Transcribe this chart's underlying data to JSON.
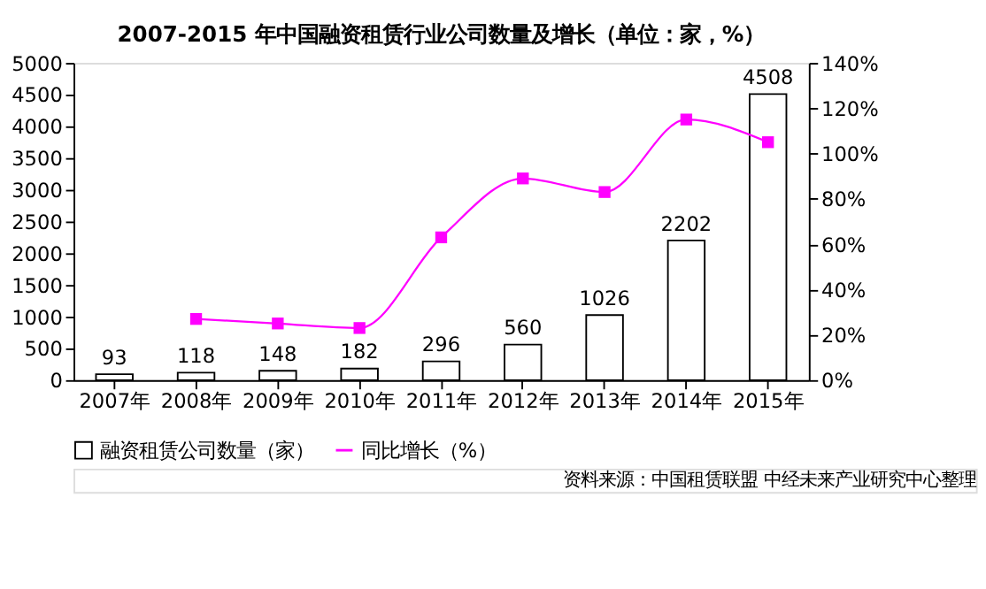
{
  "chart_data": {
    "type": "bar",
    "title": "2007-2015 年中国融资租赁行业公司数量及增长（单位：家，%）",
    "categories": [
      "2007年",
      "2008年",
      "2009年",
      "2010年",
      "2011年",
      "2012年",
      "2013年",
      "2014年",
      "2015年"
    ],
    "series": [
      {
        "name": "融资租赁公司数量（家）",
        "color": "#ffffff",
        "data_labels": true,
        "values": [
          93,
          118,
          148,
          182,
          296,
          560,
          1026,
          2202,
          4508
        ]
      },
      {
        "name": "同比增长（%）",
        "type": "line",
        "axis": "y2",
        "color": "#ff00ff",
        "marker": "square",
        "values": [
          null,
          27,
          25,
          23,
          63,
          89,
          83,
          115,
          105
        ]
      }
    ],
    "ylim": [
      0,
      5000
    ],
    "yticks": [
      0,
      500,
      1000,
      1500,
      2000,
      2500,
      3000,
      3500,
      4000,
      4500,
      5000
    ],
    "y2lim": [
      0,
      140
    ],
    "y2ticks": [
      {
        "value": 0,
        "label": "0%"
      },
      {
        "value": 20,
        "label": "20%"
      },
      {
        "value": 40,
        "label": "40%"
      },
      {
        "value": 60,
        "label": "60%"
      },
      {
        "value": 80,
        "label": "80%"
      },
      {
        "value": 100,
        "label": "100%"
      },
      {
        "value": 120,
        "label": "120%"
      },
      {
        "value": 140,
        "label": "140%"
      }
    ],
    "grid": false,
    "legend": "bottom",
    "annotations": [
      "资料来源：中国租赁联盟 中经未来产业研究中心整理"
    ]
  }
}
